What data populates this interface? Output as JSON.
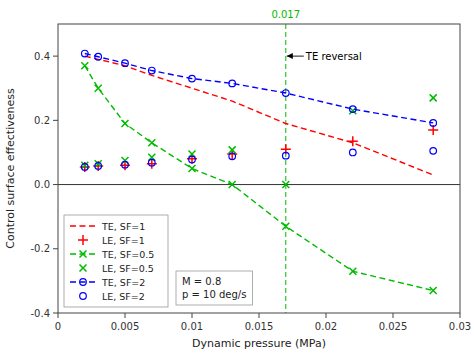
{
  "chart_data": {
    "type": "line",
    "x_label": "Dynamic pressure (MPa)",
    "y_label": "Control surface effectiveness",
    "xlim": [
      0,
      0.03
    ],
    "ylim": [
      -0.4,
      0.5
    ],
    "xticks": [
      0,
      0.005,
      0.01,
      0.015,
      0.02,
      0.025,
      0.03
    ],
    "yticks": [
      -0.4,
      -0.2,
      {
        "value": 0,
        "label": "0.0"
      },
      0.2,
      0.4
    ],
    "legend": "lower left",
    "series": [
      {
        "name": "TE, SF=1",
        "color": "#FF0000",
        "line_style": "dashed",
        "marker": "none",
        "x": [
          0.002,
          0.003,
          0.005,
          0.007,
          0.01,
          0.013,
          0.017,
          0.022,
          0.028
        ],
        "values": [
          0.4,
          0.39,
          0.37,
          0.34,
          0.3,
          0.26,
          0.19,
          0.13,
          0.03
        ]
      },
      {
        "name": "LE, SF=1",
        "color": "#FF0000",
        "line_style": "none",
        "marker": "plus",
        "x": [
          0.002,
          0.003,
          0.005,
          0.007,
          0.01,
          0.013,
          0.017,
          0.022,
          0.028
        ],
        "values": [
          0.055,
          0.058,
          0.06,
          0.065,
          0.08,
          0.095,
          0.11,
          0.135,
          0.17
        ]
      },
      {
        "name": "TE, SF=0.5",
        "color": "#00BB00",
        "line_style": "dashed",
        "marker": "x",
        "x": [
          0.002,
          0.003,
          0.005,
          0.007,
          0.01,
          0.013,
          0.017,
          0.022,
          0.028
        ],
        "values": [
          0.37,
          0.3,
          0.19,
          0.13,
          0.05,
          0.0,
          -0.13,
          -0.27,
          -0.33
        ]
      },
      {
        "name": "LE, SF=0.5",
        "color": "#00BB00",
        "line_style": "none",
        "marker": "x",
        "x": [
          0.002,
          0.003,
          0.005,
          0.007,
          0.01,
          0.013,
          0.017,
          0.022,
          0.028
        ],
        "values": [
          0.06,
          0.065,
          0.075,
          0.085,
          0.095,
          0.108,
          0.0,
          0.23,
          0.27
        ]
      },
      {
        "name": "TE, SF=2",
        "color": "#0000FF",
        "line_style": "dashed",
        "marker": "circle",
        "x": [
          0.002,
          0.003,
          0.005,
          0.007,
          0.01,
          0.013,
          0.017,
          0.022,
          0.028
        ],
        "values": [
          0.408,
          0.398,
          0.378,
          0.355,
          0.33,
          0.315,
          0.285,
          0.235,
          0.192
        ]
      },
      {
        "name": "LE, SF=2",
        "color": "#0000FF",
        "line_style": "none",
        "marker": "circle",
        "x": [
          0.002,
          0.003,
          0.005,
          0.007,
          0.01,
          0.013,
          0.017,
          0.022,
          0.028
        ],
        "values": [
          0.055,
          0.058,
          0.062,
          0.068,
          0.078,
          0.088,
          0.09,
          0.1,
          0.105
        ]
      }
    ],
    "vline": {
      "x": 0.017,
      "label": "0.017",
      "color": "#00BB00"
    },
    "annotations": [
      {
        "text": "TE reversal",
        "x": 0.017,
        "y": 0.4
      }
    ],
    "text_box": "M = 0.8\np = 10 deg/s"
  }
}
